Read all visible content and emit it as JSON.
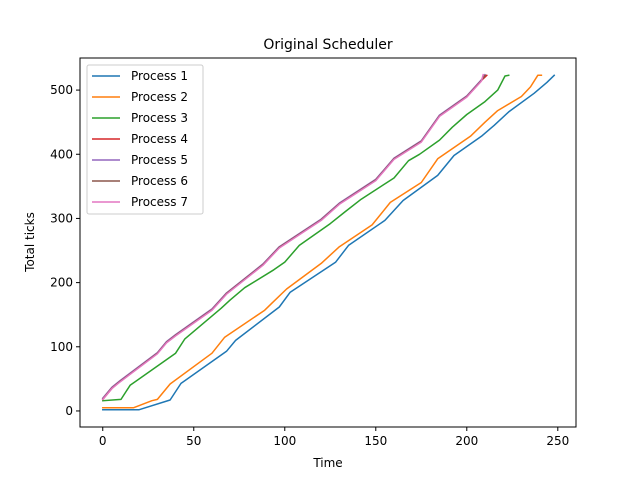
{
  "chart_data": {
    "type": "line",
    "title": "Original Scheduler",
    "xlabel": "Time",
    "ylabel": "Total ticks",
    "xlim": [
      -12.5,
      260
    ],
    "ylim": [
      -25,
      550
    ],
    "xticks": [
      0,
      50,
      100,
      150,
      200,
      250
    ],
    "yticks": [
      0,
      100,
      200,
      300,
      400,
      500
    ],
    "grid": false,
    "legend_position": "upper-left",
    "series": [
      {
        "name": "Process 1",
        "color": "#1f77b4",
        "points": [
          [
            0,
            2
          ],
          [
            20,
            2
          ],
          [
            37,
            17
          ],
          [
            43,
            43
          ],
          [
            68,
            93
          ],
          [
            73,
            110
          ],
          [
            97,
            162
          ],
          [
            103,
            185
          ],
          [
            128,
            232
          ],
          [
            135,
            258
          ],
          [
            155,
            297
          ],
          [
            165,
            328
          ],
          [
            184,
            367
          ],
          [
            193,
            398
          ],
          [
            208,
            428
          ],
          [
            215,
            445
          ],
          [
            223,
            466
          ],
          [
            237,
            495
          ],
          [
            244,
            512
          ],
          [
            248,
            523
          ]
        ]
      },
      {
        "name": "Process 2",
        "color": "#ff7f0e",
        "points": [
          [
            0,
            5
          ],
          [
            17,
            5
          ],
          [
            27,
            16
          ],
          [
            30,
            18
          ],
          [
            37,
            42
          ],
          [
            60,
            90
          ],
          [
            67,
            115
          ],
          [
            89,
            157
          ],
          [
            93,
            168
          ],
          [
            101,
            190
          ],
          [
            120,
            230
          ],
          [
            130,
            256
          ],
          [
            148,
            290
          ],
          [
            158,
            325
          ],
          [
            175,
            356
          ],
          [
            184,
            393
          ],
          [
            202,
            428
          ],
          [
            210,
            450
          ],
          [
            217,
            468
          ],
          [
            230,
            490
          ],
          [
            235,
            505
          ],
          [
            239,
            523
          ],
          [
            241,
            523
          ]
        ]
      },
      {
        "name": "Process 3",
        "color": "#2ca02c",
        "points": [
          [
            0,
            16
          ],
          [
            10,
            18
          ],
          [
            15,
            40
          ],
          [
            40,
            90
          ],
          [
            45,
            112
          ],
          [
            65,
            160
          ],
          [
            70,
            173
          ],
          [
            78,
            192
          ],
          [
            94,
            220
          ],
          [
            100,
            232
          ],
          [
            108,
            258
          ],
          [
            125,
            292
          ],
          [
            133,
            310
          ],
          [
            142,
            330
          ],
          [
            160,
            363
          ],
          [
            168,
            390
          ],
          [
            174,
            400
          ],
          [
            185,
            422
          ],
          [
            192,
            442
          ],
          [
            200,
            462
          ],
          [
            210,
            482
          ],
          [
            217,
            500
          ],
          [
            221,
            522
          ],
          [
            223,
            523
          ]
        ]
      },
      {
        "name": "Process 4",
        "color": "#d62728",
        "points": [
          [
            0,
            18
          ],
          [
            5,
            35
          ],
          [
            9,
            45
          ],
          [
            30,
            90
          ],
          [
            35,
            107
          ],
          [
            40,
            118
          ],
          [
            60,
            158
          ],
          [
            68,
            183
          ],
          [
            88,
            228
          ],
          [
            97,
            255
          ],
          [
            120,
            298
          ],
          [
            130,
            323
          ],
          [
            150,
            360
          ],
          [
            160,
            393
          ],
          [
            175,
            420
          ],
          [
            185,
            460
          ],
          [
            200,
            490
          ],
          [
            208,
            515
          ],
          [
            211,
            523
          ]
        ]
      },
      {
        "name": "Process 5",
        "color": "#9467bd",
        "points": [
          [
            0,
            20
          ],
          [
            5,
            37
          ],
          [
            9,
            46
          ],
          [
            30,
            91
          ],
          [
            35,
            108
          ],
          [
            40,
            119
          ],
          [
            60,
            159
          ],
          [
            68,
            184
          ],
          [
            88,
            229
          ],
          [
            97,
            256
          ],
          [
            120,
            299
          ],
          [
            130,
            324
          ],
          [
            150,
            361
          ],
          [
            160,
            394
          ],
          [
            175,
            421
          ],
          [
            185,
            461
          ],
          [
            200,
            491
          ],
          [
            208,
            516
          ],
          [
            210,
            524
          ]
        ]
      },
      {
        "name": "Process 6",
        "color": "#8c564b",
        "points": [
          [
            0,
            19
          ],
          [
            5,
            36
          ],
          [
            9,
            45
          ],
          [
            30,
            90
          ],
          [
            35,
            107
          ],
          [
            40,
            118
          ],
          [
            60,
            158
          ],
          [
            68,
            183
          ],
          [
            88,
            228
          ],
          [
            97,
            255
          ],
          [
            120,
            298
          ],
          [
            130,
            323
          ],
          [
            150,
            360
          ],
          [
            160,
            393
          ],
          [
            175,
            420
          ],
          [
            185,
            460
          ],
          [
            200,
            490
          ],
          [
            208,
            515
          ],
          [
            210,
            523
          ]
        ]
      },
      {
        "name": "Process 7",
        "color": "#e377c2",
        "points": [
          [
            0,
            18
          ],
          [
            5,
            35
          ],
          [
            9,
            44
          ],
          [
            30,
            89
          ],
          [
            35,
            106
          ],
          [
            40,
            117
          ],
          [
            60,
            157
          ],
          [
            68,
            182
          ],
          [
            88,
            227
          ],
          [
            97,
            254
          ],
          [
            120,
            297
          ],
          [
            130,
            322
          ],
          [
            150,
            359
          ],
          [
            160,
            392
          ],
          [
            175,
            419
          ],
          [
            185,
            459
          ],
          [
            200,
            489
          ],
          [
            208,
            514
          ],
          [
            209,
            524
          ]
        ]
      }
    ]
  }
}
